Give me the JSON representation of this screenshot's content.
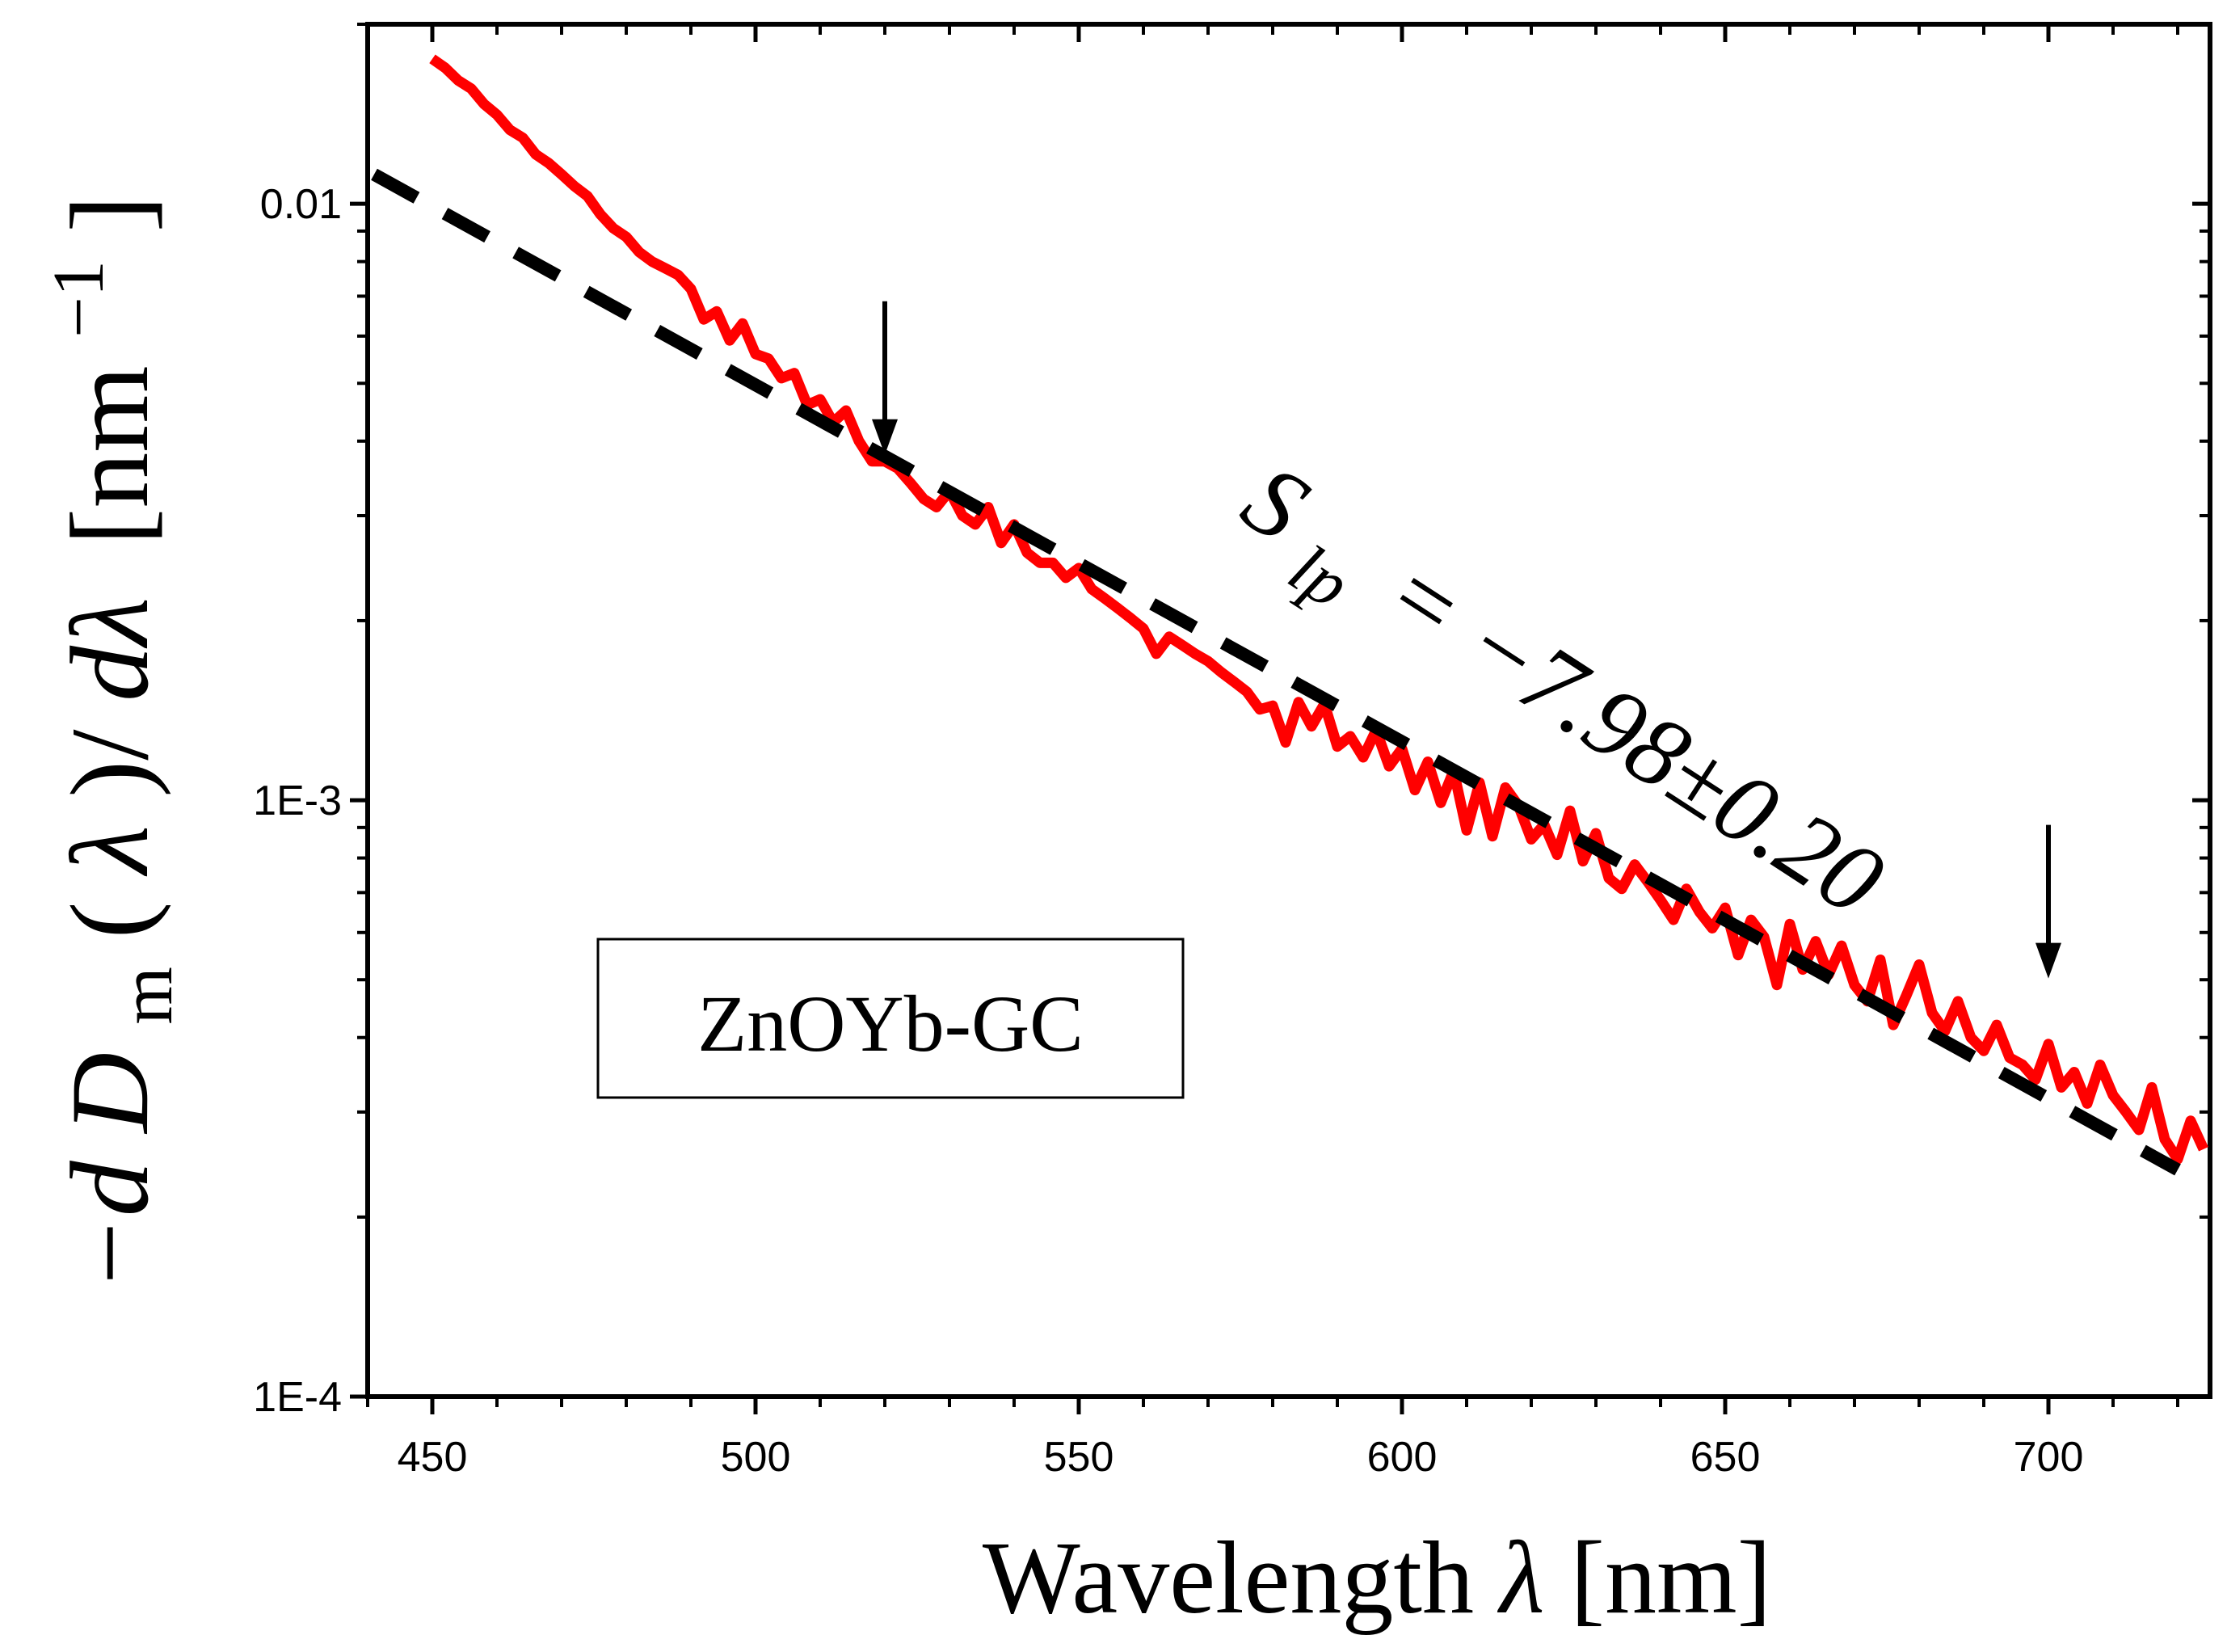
{
  "chart_data": {
    "type": "line",
    "title": "",
    "xlabel": "Wavelength λ [nm]",
    "xlabel_parts": {
      "word": "Wavelength",
      "symbol": "λ",
      "unit": "[nm]"
    },
    "ylabel": "−dD_m(λ)/dλ [nm^−1]",
    "ylabel_parts": {
      "minus_d": "−d",
      "D": "D",
      "m": "m",
      "lparen": "(",
      "lambda": "λ",
      "rparen_slash": ")/",
      "d_lambda": "dλ",
      "unit_open": "[nm",
      "exp": "−1",
      "unit_close": "]"
    },
    "xlim": [
      440,
      725
    ],
    "ylim": [
      0.0001,
      0.02
    ],
    "yscale": "log",
    "x_ticks": [
      450,
      500,
      550,
      600,
      650,
      700
    ],
    "x_tick_labels": [
      "450",
      "500",
      "550",
      "600",
      "650",
      "700"
    ],
    "y_ticks": [
      0.0001,
      0.001,
      0.01
    ],
    "y_tick_labels": [
      "1E-4",
      "1E-3",
      "0.01"
    ],
    "legend": {
      "text": "ZnOYb-GC",
      "placement": "bottom-left"
    },
    "series": [
      {
        "name": "ZnOYb-GC measured",
        "color": "#ff0000",
        "style": "solid",
        "x": [
          450,
          452,
          454,
          456,
          458,
          460,
          462,
          464,
          466,
          468,
          470,
          472,
          474,
          476,
          478,
          480,
          482,
          484,
          486,
          488,
          490,
          492,
          494,
          496,
          498,
          500,
          502,
          504,
          506,
          508,
          510,
          512,
          514,
          516,
          518,
          520,
          522,
          524,
          526,
          528,
          530,
          532,
          534,
          536,
          538,
          540,
          542,
          544,
          546,
          548,
          550,
          552,
          554,
          556,
          558,
          560,
          562,
          564,
          566,
          568,
          570,
          572,
          574,
          576,
          578,
          580,
          582,
          584,
          586,
          588,
          590,
          592,
          594,
          596,
          598,
          600,
          602,
          604,
          606,
          608,
          610,
          612,
          614,
          616,
          618,
          620,
          622,
          624,
          626,
          628,
          630,
          632,
          634,
          636,
          638,
          640,
          642,
          644,
          646,
          648,
          650,
          652,
          654,
          656,
          658,
          660,
          662,
          664,
          666,
          668,
          670,
          672,
          674,
          676,
          678,
          680,
          682,
          684,
          686,
          688,
          690,
          692,
          694,
          696,
          698,
          700,
          702,
          704,
          706,
          708,
          710,
          712,
          714,
          716,
          718,
          720,
          722,
          724
        ],
        "y": [
          0.0175,
          0.0169,
          0.0161,
          0.0156,
          0.0147,
          0.0141,
          0.0133,
          0.0129,
          0.0121,
          0.0117,
          0.0112,
          0.0107,
          0.0103,
          0.0096,
          0.0091,
          0.0088,
          0.0083,
          0.008,
          0.0078,
          0.0076,
          0.0072,
          0.0064,
          0.0066,
          0.0059,
          0.0063,
          0.0056,
          0.0055,
          0.0051,
          0.0052,
          0.0046,
          0.0047,
          0.0043,
          0.0045,
          0.004,
          0.0037,
          0.0037,
          0.0036,
          0.0034,
          0.0032,
          0.0031,
          0.0033,
          0.003,
          0.0029,
          0.0031,
          0.0027,
          0.0029,
          0.0026,
          0.0025,
          0.0025,
          0.00236,
          0.00245,
          0.00226,
          0.00218,
          0.0021,
          0.00202,
          0.00194,
          0.00176,
          0.00188,
          0.00182,
          0.00176,
          0.00171,
          0.00164,
          0.00158,
          0.00152,
          0.00142,
          0.00144,
          0.00125,
          0.00146,
          0.00133,
          0.00145,
          0.00123,
          0.00128,
          0.00118,
          0.00131,
          0.00114,
          0.00122,
          0.00104,
          0.00116,
          0.00099,
          0.00112,
          0.00089,
          0.00107,
          0.00087,
          0.00105,
          0.00098,
          0.00086,
          0.00091,
          0.00081,
          0.00096,
          0.00079,
          0.00088,
          0.00074,
          0.00071,
          0.00078,
          0.00073,
          0.00068,
          0.00063,
          0.00071,
          0.00065,
          0.00061,
          0.00066,
          0.00055,
          0.00063,
          0.00059,
          0.00049,
          0.00062,
          0.00052,
          0.00058,
          0.00051,
          0.00057,
          0.00049,
          0.00046,
          0.00054,
          0.00042,
          0.00047,
          0.00053,
          0.00044,
          0.00041,
          0.00046,
          0.0004,
          0.00038,
          0.00042,
          0.00037,
          0.00036,
          0.00034,
          0.00039,
          0.00033,
          0.00035,
          0.00031,
          0.00036,
          0.00032,
          0.0003,
          0.00028,
          0.00033,
          0.00027,
          0.00025,
          0.00029,
          0.00026
        ]
      },
      {
        "name": "fit S_lp",
        "color": "#000000",
        "style": "dashed",
        "x": [
          441,
          720
        ],
        "y": [
          0.0112,
          0.00024
        ]
      }
    ],
    "annotations": [
      {
        "type": "arrow",
        "x": 520,
        "y": 0.0037,
        "direction": "down"
      },
      {
        "type": "arrow",
        "x": 700,
        "y": 0.00049,
        "direction": "down"
      },
      {
        "type": "text",
        "text": "S_lp = −7.98±0.20",
        "parts": {
          "S": "S",
          "sub": "lp",
          "value": "= −7.98±0.20"
        },
        "rotation_deg": 33
      }
    ]
  }
}
